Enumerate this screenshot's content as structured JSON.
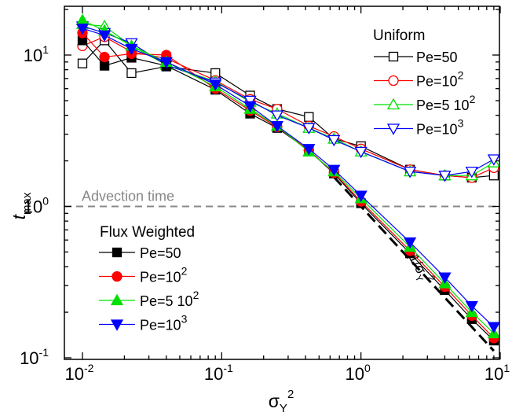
{
  "chart_data": {
    "type": "line",
    "x_scale": "log",
    "y_scale": "log",
    "xlim": [
      0.01,
      10
    ],
    "ylim": [
      0.1,
      20
    ],
    "xlabel": "σY2",
    "ylabel": "tmax",
    "x_tick_labels": [
      {
        "value": 0.01,
        "base": "10",
        "exp": "-2"
      },
      {
        "value": 0.1,
        "base": "10",
        "exp": "-1"
      },
      {
        "value": 1,
        "base": "10",
        "exp": "0"
      },
      {
        "value": 10,
        "base": "10",
        "exp": "1"
      }
    ],
    "y_tick_labels": [
      {
        "value": 0.1,
        "base": "10",
        "exp": "-1"
      },
      {
        "value": 1,
        "base": "10",
        "exp": "0"
      },
      {
        "value": 10,
        "base": "10",
        "exp": "1"
      }
    ],
    "x": [
      0.01,
      0.0144,
      0.0225,
      0.04,
      0.09,
      0.16,
      0.25,
      0.4225,
      0.64,
      1.0,
      2.25,
      4.0,
      6.25,
      9.0
    ],
    "reference_line": {
      "label": "Advection time",
      "y": 1.0,
      "color": "#888888",
      "style": "dashed"
    },
    "guide_line": {
      "label": "1/σY2",
      "x": [
        0.64,
        9.0
      ],
      "y": [
        1.5625,
        0.1111
      ],
      "color": "#000000",
      "style": "dashed"
    },
    "legend_groups": [
      {
        "title": "Uniform",
        "position": "top-right"
      },
      {
        "title": "Flux Weighted",
        "position": "bottom-left"
      }
    ],
    "series": [
      {
        "name": "Pe=50",
        "label_main": "Pe=50",
        "label_exp": "",
        "group": "Uniform",
        "color": "#000000",
        "marker": "square",
        "filled": false,
        "values": [
          8.8,
          12.5,
          7.6,
          8.4,
          7.6,
          5.4,
          4.4,
          3.9,
          2.8,
          2.5,
          1.75,
          1.6,
          1.55,
          1.6
        ]
      },
      {
        "name": "Pe=10^2",
        "label_main": "Pe=10",
        "label_exp": "2",
        "group": "Uniform",
        "color": "#ff0000",
        "marker": "circle",
        "filled": false,
        "values": [
          11.5,
          13.2,
          10.5,
          9.5,
          6.8,
          5.1,
          4.4,
          3.4,
          2.9,
          2.4,
          1.75,
          1.6,
          1.55,
          1.8
        ]
      },
      {
        "name": "Pe=5 10^2",
        "label_main": "Pe=5 10",
        "label_exp": "2",
        "group": "Uniform",
        "color": "#00e000",
        "marker": "triangle-up",
        "filled": false,
        "values": [
          16.0,
          15.5,
          11.5,
          8.6,
          6.7,
          4.9,
          4.1,
          3.3,
          2.8,
          2.3,
          1.7,
          1.6,
          1.6,
          1.95
        ]
      },
      {
        "name": "Pe=10^3",
        "label_main": "Pe=10",
        "label_exp": "3",
        "group": "Uniform",
        "color": "#0000ff",
        "marker": "triangle-down",
        "filled": false,
        "values": [
          15.5,
          14.0,
          12.0,
          8.6,
          6.6,
          5.0,
          4.0,
          3.3,
          2.75,
          2.3,
          1.7,
          1.6,
          1.7,
          2.05
        ]
      },
      {
        "name": "Pe=50",
        "label_main": "Pe=50",
        "label_exp": "",
        "group": "Flux Weighted",
        "color": "#000000",
        "marker": "square",
        "filled": true,
        "values": [
          12.5,
          8.5,
          9.6,
          8.5,
          5.9,
          4.1,
          3.3,
          2.35,
          1.65,
          1.05,
          0.49,
          0.28,
          0.18,
          0.13
        ]
      },
      {
        "name": "Pe=10^2",
        "label_main": "Pe=10",
        "label_exp": "2",
        "group": "Flux Weighted",
        "color": "#ff0000",
        "marker": "circle",
        "filled": true,
        "values": [
          14.0,
          9.7,
          10.2,
          10.0,
          6.0,
          4.3,
          3.35,
          2.35,
          1.67,
          1.08,
          0.51,
          0.295,
          0.19,
          0.135
        ]
      },
      {
        "name": "Pe=5 10^2",
        "label_main": "Pe=5 10",
        "label_exp": "2",
        "group": "Flux Weighted",
        "color": "#00e000",
        "marker": "triangle-up",
        "filled": true,
        "values": [
          17.0,
          14.5,
          11.5,
          9.0,
          6.2,
          4.4,
          3.4,
          2.3,
          1.7,
          1.13,
          0.54,
          0.31,
          0.2,
          0.145
        ]
      },
      {
        "name": "Pe=10^3",
        "label_main": "Pe=10",
        "label_exp": "3",
        "group": "Flux Weighted",
        "color": "#0000ff",
        "marker": "triangle-down",
        "filled": true,
        "values": [
          15.0,
          13.5,
          11.0,
          9.0,
          6.4,
          4.6,
          3.4,
          2.4,
          1.75,
          1.18,
          0.58,
          0.34,
          0.22,
          0.16
        ]
      }
    ]
  }
}
